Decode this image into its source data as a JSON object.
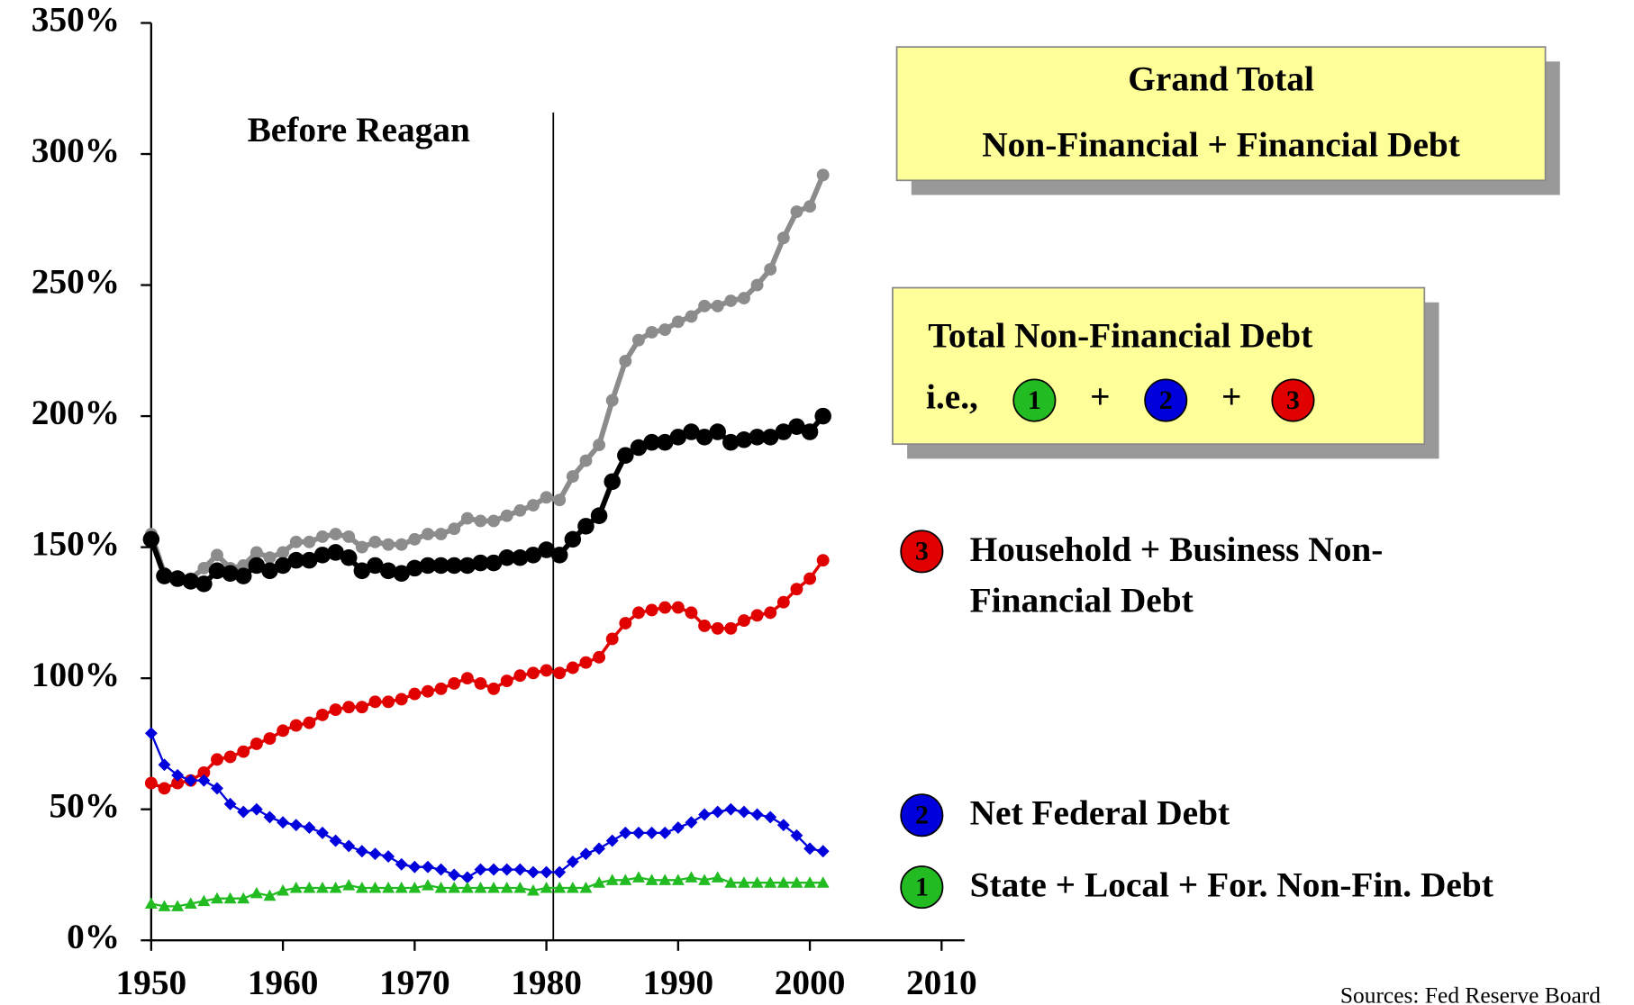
{
  "chart_data": {
    "type": "line",
    "x": [
      1950,
      1951,
      1952,
      1953,
      1954,
      1955,
      1956,
      1957,
      1958,
      1959,
      1960,
      1961,
      1962,
      1963,
      1964,
      1965,
      1966,
      1967,
      1968,
      1969,
      1970,
      1971,
      1972,
      1973,
      1974,
      1975,
      1976,
      1977,
      1978,
      1979,
      1980,
      1981,
      1982,
      1983,
      1984,
      1985,
      1986,
      1987,
      1988,
      1989,
      1990,
      1991,
      1992,
      1993,
      1994,
      1995,
      1996,
      1997,
      1998,
      1999,
      2000,
      2001
    ],
    "xlim": [
      1950,
      2012
    ],
    "xticks": [
      1950,
      1960,
      1970,
      1980,
      1990,
      2000,
      2010
    ],
    "ylim": [
      0,
      350
    ],
    "yticks": [
      {
        "value": 0,
        "label": "0%"
      },
      {
        "value": 50,
        "label": "50%"
      },
      {
        "value": 100,
        "label": "100%"
      },
      {
        "value": 150,
        "label": "150%"
      },
      {
        "value": 200,
        "label": "200%"
      },
      {
        "value": 250,
        "label": "250%"
      },
      {
        "value": 300,
        "label": "300%"
      },
      {
        "value": 350,
        "label": "350%"
      }
    ],
    "series": [
      {
        "name": "Grand Total",
        "color": "#8c8c8c",
        "marker": "circle",
        "values": [
          155,
          140,
          138,
          138,
          142,
          147,
          142,
          143,
          148,
          146,
          148,
          152,
          152,
          154,
          155,
          154,
          150,
          152,
          151,
          151,
          153,
          155,
          155,
          157,
          161,
          160,
          160,
          162,
          164,
          166,
          169,
          168,
          177,
          183,
          189,
          206,
          221,
          229,
          232,
          233,
          236,
          238,
          242,
          242,
          244,
          245,
          250,
          256,
          268,
          278,
          280,
          292
        ]
      },
      {
        "name": "Total Non-Financial Debt",
        "color": "#000000",
        "marker": "circle",
        "values": [
          153,
          139,
          138,
          137,
          136,
          141,
          140,
          139,
          143,
          141,
          143,
          145,
          145,
          147,
          148,
          146,
          141,
          143,
          141,
          140,
          142,
          143,
          143,
          143,
          143,
          144,
          144,
          146,
          146,
          147,
          149,
          147,
          153,
          158,
          162,
          175,
          185,
          188,
          190,
          190,
          192,
          194,
          192,
          194,
          190,
          191,
          192,
          192,
          194,
          196,
          194,
          200
        ]
      },
      {
        "name": "Household + Business Non-Financial Debt",
        "color": "#e00000",
        "marker": "circle",
        "badge": "3",
        "values": [
          60,
          58,
          60,
          61,
          64,
          69,
          70,
          72,
          75,
          77,
          80,
          82,
          83,
          86,
          88,
          89,
          89,
          91,
          91,
          92,
          94,
          95,
          96,
          98,
          100,
          98,
          96,
          99,
          101,
          102,
          103,
          102,
          104,
          106,
          108,
          115,
          121,
          125,
          126,
          127,
          127,
          125,
          120,
          119,
          119,
          122,
          124,
          125,
          129,
          134,
          138,
          145
        ]
      },
      {
        "name": "Net Federal Debt",
        "color": "#0000dd",
        "marker": "diamond",
        "badge": "2",
        "values": [
          79,
          67,
          63,
          61,
          61,
          58,
          52,
          49,
          50,
          47,
          45,
          44,
          43,
          41,
          38,
          36,
          34,
          33,
          32,
          29,
          28,
          28,
          27,
          25,
          24,
          27,
          27,
          27,
          27,
          26,
          26,
          26,
          30,
          33,
          35,
          38,
          41,
          41,
          41,
          41,
          43,
          45,
          48,
          49,
          50,
          49,
          48,
          47,
          44,
          40,
          35,
          34
        ]
      },
      {
        "name": "State + Local + For. Non-Fin. Debt",
        "color": "#22bb22",
        "marker": "triangle",
        "badge": "1",
        "values": [
          14,
          13,
          13,
          14,
          15,
          16,
          16,
          16,
          18,
          17,
          19,
          20,
          20,
          20,
          20,
          21,
          20,
          20,
          20,
          20,
          20,
          21,
          20,
          20,
          20,
          20,
          20,
          20,
          20,
          19,
          20,
          20,
          20,
          20,
          22,
          23,
          23,
          24,
          23,
          23,
          23,
          24,
          23,
          24,
          22,
          22,
          22,
          22,
          22,
          22,
          22,
          22
        ]
      }
    ],
    "annotations": {
      "before": "Before Reagan",
      "reference_x": 1981
    },
    "box_grand": {
      "subtitle": "Non-Financial + Financial Debt"
    },
    "box_total": {
      "prefix": "i.e.,",
      "operator": "+"
    },
    "source": "Sources: Fed Reserve Board"
  }
}
